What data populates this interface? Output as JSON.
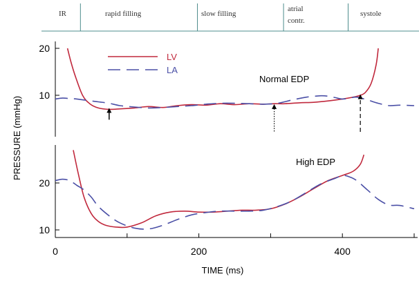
{
  "chart_data": [
    {
      "type": "line",
      "panel": "top",
      "title": "Normal EDP",
      "xlabel": "TIME (ms)",
      "ylabel": "PRESSURE (mmHg)",
      "xlim": [
        -10,
        500
      ],
      "ylim": [
        2,
        23
      ],
      "yticks": [
        10,
        20
      ],
      "phases": [
        {
          "label": "IR",
          "x": [
            -10,
            35
          ]
        },
        {
          "label": "rapid filling",
          "x": [
            35,
            198
          ]
        },
        {
          "label": "slow filling",
          "x": [
            198,
            318
          ]
        },
        {
          "label": "atrial contr.",
          "x": [
            318,
            408
          ]
        },
        {
          "label": "systole",
          "x": [
            408,
            500
          ]
        }
      ],
      "series": [
        {
          "name": "LV",
          "color": "#c0283c",
          "dash": "solid",
          "x": [
            17,
            22,
            28,
            38,
            48,
            60,
            75,
            90,
            110,
            130,
            150,
            170,
            190,
            210,
            230,
            250,
            270,
            290,
            305,
            320,
            340,
            360,
            380,
            400,
            415,
            425,
            432,
            440,
            447,
            450
          ],
          "y": [
            20,
            17,
            14,
            10,
            8.2,
            7.3,
            7.0,
            7.1,
            7.3,
            7.6,
            7.4,
            7.8,
            8.0,
            7.9,
            8.2,
            8.0,
            8.2,
            8.1,
            8.2,
            8.2,
            8.4,
            8.5,
            8.8,
            9.2,
            9.6,
            10.0,
            10.6,
            12.5,
            16.5,
            20
          ]
        },
        {
          "name": "LA",
          "color": "#4a4fa6",
          "dash": "dashed",
          "x": [
            0,
            10,
            20,
            30,
            40,
            50,
            60,
            75,
            90,
            110,
            130,
            150,
            170,
            190,
            210,
            230,
            250,
            270,
            290,
            310,
            330,
            350,
            370,
            380,
            390,
            400,
            410,
            420,
            435,
            450,
            465,
            480,
            500
          ],
          "y": [
            9.2,
            9.4,
            9.3,
            9.2,
            9.0,
            8.8,
            8.6,
            8.3,
            7.8,
            7.5,
            7.3,
            7.4,
            7.6,
            7.8,
            8.1,
            8.3,
            8.3,
            8.2,
            8.1,
            8.3,
            9.0,
            9.6,
            9.9,
            9.8,
            9.5,
            9.2,
            9.4,
            9.6,
            9.0,
            8.3,
            7.8,
            7.9,
            7.8
          ]
        }
      ],
      "annotations": [
        {
          "style": "solid",
          "x": 75,
          "from": 4.8,
          "to": 7.3
        },
        {
          "style": "dotted",
          "x": 305,
          "from": 2.3,
          "to": 8.1
        },
        {
          "style": "dashed",
          "x": 425,
          "from": 2.2,
          "to": 10.2
        }
      ]
    },
    {
      "type": "line",
      "panel": "bottom",
      "title": "High EDP",
      "xlim": [
        -10,
        500
      ],
      "ylim": [
        9,
        27
      ],
      "yticks": [
        10,
        20
      ],
      "xticks": [
        0,
        200,
        400
      ],
      "series": [
        {
          "name": "LV",
          "color": "#c0283c",
          "dash": "solid",
          "x": [
            25,
            32,
            40,
            50,
            60,
            70,
            85,
            100,
            120,
            140,
            160,
            180,
            200,
            220,
            240,
            260,
            280,
            300,
            320,
            340,
            360,
            380,
            400,
            415,
            425,
            430
          ],
          "y": [
            27,
            22,
            17,
            13.5,
            11.8,
            11.0,
            10.6,
            10.6,
            11.5,
            13.0,
            13.8,
            14.0,
            13.8,
            13.8,
            14.0,
            14.2,
            14.2,
            14.5,
            15.5,
            17.0,
            18.8,
            20.5,
            21.6,
            22.5,
            24.0,
            26.0
          ]
        },
        {
          "name": "LA",
          "color": "#4a4fa6",
          "dash": "dashed",
          "x": [
            0,
            10,
            20,
            30,
            40,
            50,
            60,
            75,
            90,
            110,
            130,
            150,
            170,
            190,
            210,
            230,
            250,
            270,
            290,
            310,
            330,
            350,
            370,
            390,
            400,
            410,
            420,
            435,
            450,
            465,
            480,
            500
          ],
          "y": [
            20.5,
            20.8,
            20.5,
            19.5,
            18.5,
            17.0,
            15.0,
            13.0,
            11.5,
            10.4,
            10.2,
            11.0,
            12.2,
            13.2,
            13.7,
            14.0,
            14.0,
            14.0,
            14.2,
            15.0,
            16.2,
            18.0,
            19.8,
            21.0,
            21.6,
            21.3,
            20.5,
            18.5,
            16.5,
            15.3,
            15.2,
            14.5
          ]
        }
      ]
    }
  ]
}
